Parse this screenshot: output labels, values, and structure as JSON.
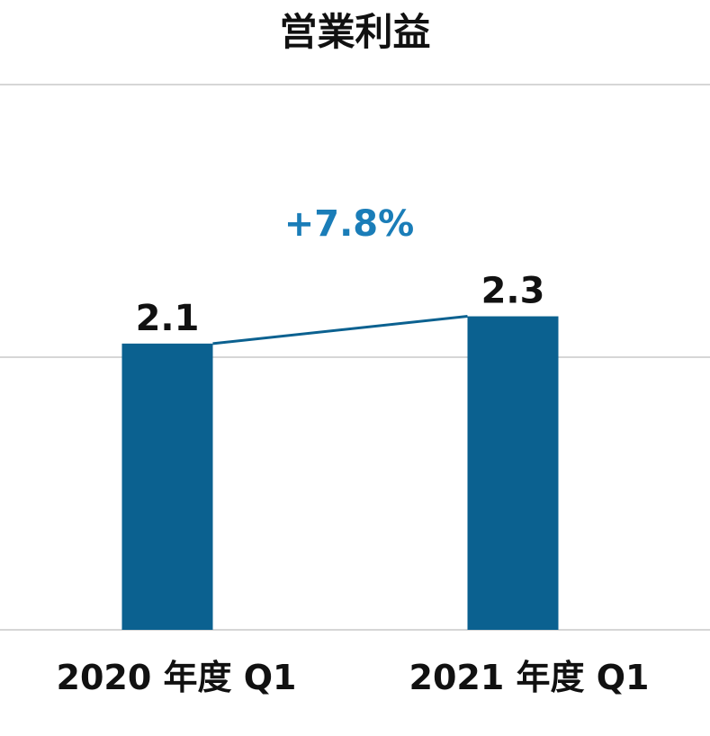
{
  "chart_data": {
    "type": "bar",
    "title": "営業利益",
    "categories": [
      "2020 年度  Q1",
      "2021 年度  Q1"
    ],
    "values": [
      2.1,
      2.3
    ],
    "value_labels": [
      "2.1",
      "2.3"
    ],
    "annotation": {
      "text": "+7.8%",
      "connects": "bars"
    },
    "ylim": [
      0,
      4
    ],
    "gridlines": [
      0,
      2,
      4
    ],
    "grid": true,
    "legend": "none",
    "colors": {
      "bar": "#0b6190",
      "annotation": "#1a7db8",
      "connector": "#0b6190",
      "grid": "#c8c8c8"
    }
  }
}
